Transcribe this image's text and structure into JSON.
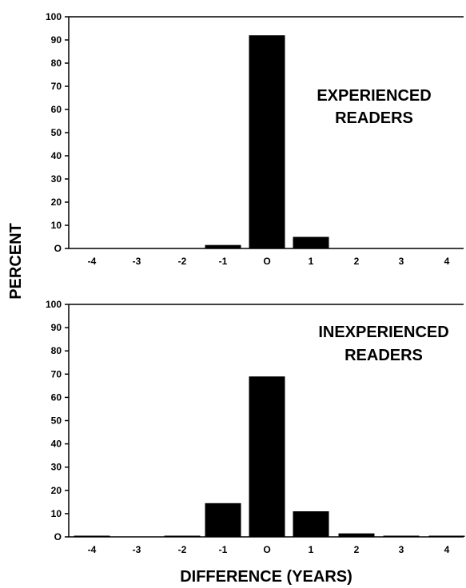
{
  "ylabel": "PERCENT",
  "xlabel": "DIFFERENCE (YEARS)",
  "chart_data": [
    {
      "type": "bar",
      "annotation": [
        "EXPERIENCED",
        "READERS"
      ],
      "categories": [
        "-4",
        "-3",
        "-2",
        "-1",
        "O",
        "1",
        "2",
        "3",
        "4"
      ],
      "values": [
        0,
        0,
        0,
        1.5,
        92,
        5,
        0,
        0,
        0
      ],
      "yticks": [
        "O",
        "10",
        "20",
        "30",
        "40",
        "50",
        "60",
        "70",
        "80",
        "90",
        "100"
      ],
      "ylim": [
        0,
        100
      ],
      "xlabel": "",
      "ylabel": "PERCENT"
    },
    {
      "type": "bar",
      "annotation": [
        "INEXPERIENCED",
        "READERS"
      ],
      "categories": [
        "-4",
        "-3",
        "-2",
        "-1",
        "O",
        "1",
        "2",
        "3",
        "4"
      ],
      "values": [
        0.5,
        0,
        0.5,
        14.5,
        69,
        11,
        1.5,
        0.5,
        0.5
      ],
      "yticks": [
        "O",
        "10",
        "20",
        "30",
        "40",
        "50",
        "60",
        "70",
        "80",
        "90",
        "100"
      ],
      "ylim": [
        0,
        100
      ],
      "xlabel": "DIFFERENCE (YEARS)",
      "ylabel": "PERCENT"
    }
  ]
}
